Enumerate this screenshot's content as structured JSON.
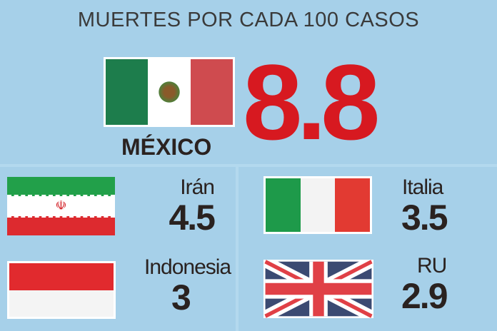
{
  "title": "MUERTES POR CADA 100 CASOS",
  "main": {
    "country": "MÉXICO",
    "value": "8.8",
    "color": "#d71920"
  },
  "countries": [
    {
      "name": "Irán",
      "value": "4.5",
      "flag": "iran-flag"
    },
    {
      "name": "Italia",
      "value": "3.5",
      "flag": "italy-flag"
    },
    {
      "name": "Indonesia",
      "value": "3",
      "flag": "indonesia-flag"
    },
    {
      "name": "RU",
      "value": "2.9",
      "flag": "uk-flag"
    }
  ],
  "colors": {
    "background": "#a6d0e9",
    "green": "#1e9a4a",
    "red": "#e23a32",
    "text": "#2a2220"
  }
}
